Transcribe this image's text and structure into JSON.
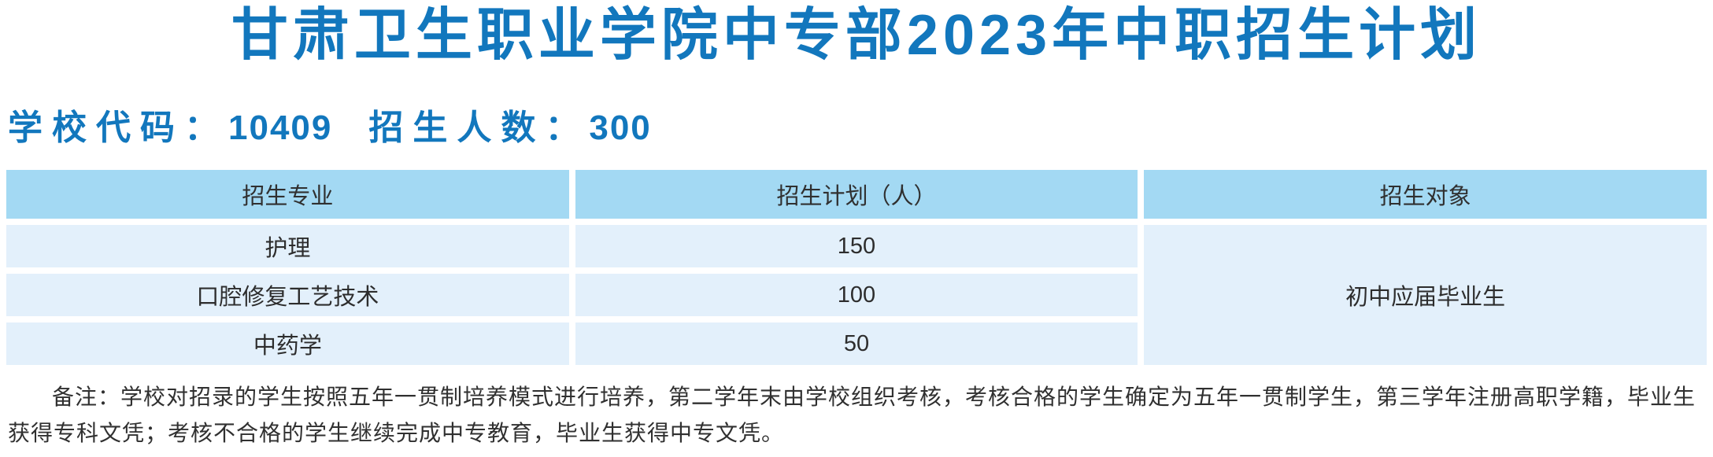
{
  "title": "甘肃卫生职业学院中专部2023年中职招生计划",
  "info_line": {
    "school_code_label": "学校代码：",
    "school_code_value": "10409",
    "enrollment_label": "招生人数：",
    "enrollment_value": "300"
  },
  "table": {
    "headers": [
      "招生专业",
      "招生计划（人）",
      "招生对象"
    ],
    "rows": [
      {
        "major": "护理",
        "plan": "150"
      },
      {
        "major": "口腔修复工艺技术",
        "plan": "100"
      },
      {
        "major": "中药学",
        "plan": "50"
      }
    ],
    "target": "初中应届毕业生"
  },
  "note": "备注：学校对招录的学生按照五年一贯制培养模式进行培养，第二学年末由学校组织考核，考核合格的学生确定为五年一贯制学生，第三学年注册高职学籍，毕业生获得专科文凭；考核不合格的学生继续完成中专教育，毕业生获得中专文凭。",
  "colors": {
    "accent_blue": "#1277bd",
    "table_header_bg": "#a3d9f3",
    "table_row_bg": "#e3f0fb",
    "note_text": "#303030"
  }
}
